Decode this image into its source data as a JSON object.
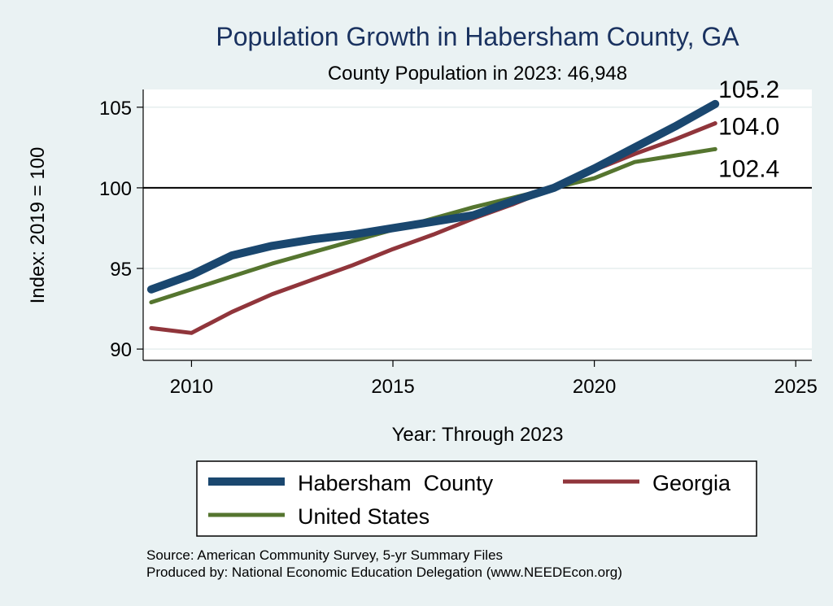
{
  "chart_data": {
    "type": "line",
    "title": "Population Growth in Habersham County, GA",
    "subtitle": "County Population in 2023: 46,948",
    "xlabel": "Year: Through 2023",
    "ylabel": "Index: 2019 = 100",
    "xlim": [
      2008.8,
      2025.4
    ],
    "ylim": [
      89.3,
      106.1
    ],
    "xticks": [
      2010,
      2015,
      2020,
      2025
    ],
    "yticks": [
      90,
      95,
      100,
      105
    ],
    "reference_line": 100,
    "grid": true,
    "legend_position": "bottom",
    "x": [
      2009,
      2010,
      2011,
      2012,
      2013,
      2014,
      2015,
      2016,
      2017,
      2018,
      2019,
      2020,
      2021,
      2022,
      2023
    ],
    "series": [
      {
        "name": "Habersham  County",
        "color": "#1a476f",
        "values": [
          93.7,
          94.6,
          95.8,
          96.4,
          96.8,
          97.1,
          97.5,
          97.9,
          98.3,
          99.2,
          100.0,
          101.2,
          102.5,
          103.8,
          105.2
        ],
        "end_label": "105.2"
      },
      {
        "name": "Georgia",
        "color": "#90353b",
        "values": [
          91.3,
          91.0,
          92.3,
          93.4,
          94.3,
          95.2,
          96.2,
          97.1,
          98.1,
          99.0,
          100.0,
          101.1,
          102.1,
          103.0,
          104.0
        ],
        "end_label": "104.0"
      },
      {
        "name": "United States",
        "color": "#55752f",
        "values": [
          92.9,
          93.7,
          94.5,
          95.3,
          96.0,
          96.7,
          97.4,
          98.1,
          98.8,
          99.4,
          100.0,
          100.6,
          101.6,
          102.0,
          102.4
        ],
        "end_label": "102.4"
      }
    ],
    "notes": [
      "Source: American Community Survey, 5-yr Summary Files",
      "Produced by: National Economic Education Delegation (www.NEEDEcon.org)"
    ]
  }
}
